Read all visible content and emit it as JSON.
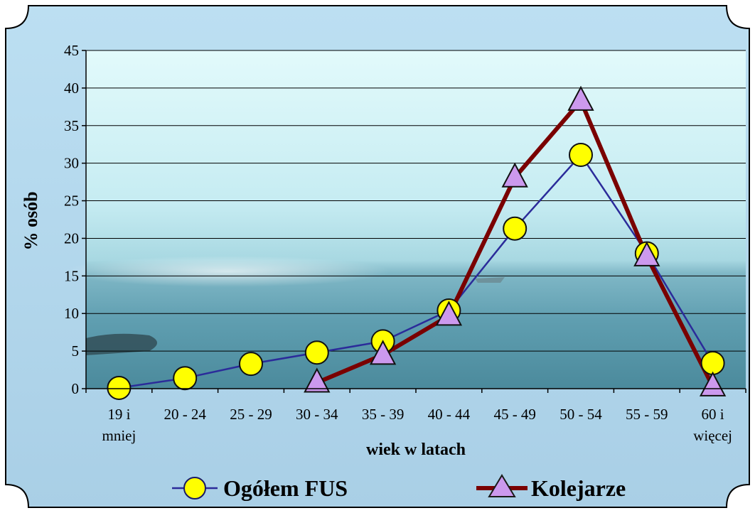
{
  "chart_data": {
    "type": "line",
    "title": "",
    "xlabel": "wiek w latach",
    "ylabel": "% osób",
    "categories": [
      [
        "19 i",
        "mniej"
      ],
      [
        "20 - 24"
      ],
      [
        "25 - 29"
      ],
      [
        "30 - 34"
      ],
      [
        "35 - 39"
      ],
      [
        "40 - 44"
      ],
      [
        "45 - 49"
      ],
      [
        "50 - 54"
      ],
      [
        "55 - 59"
      ],
      [
        "60 i",
        "więcej"
      ]
    ],
    "ylim": [
      0,
      45
    ],
    "yticks": [
      0,
      5,
      10,
      15,
      20,
      25,
      30,
      35,
      40,
      45
    ],
    "grid": true,
    "legend_position": "bottom",
    "series": [
      {
        "name": "Ogółem FUS",
        "values": [
          0.1,
          1.4,
          3.3,
          4.8,
          6.3,
          10.4,
          21.3,
          31.1,
          18.0,
          3.4
        ],
        "line_color": "#2b2b9a",
        "marker": "circle",
        "marker_fill": "#ffff00"
      },
      {
        "name": "Kolejarze",
        "values": [
          null,
          null,
          null,
          0.8,
          4.5,
          9.7,
          28.1,
          38.3,
          17.6,
          0.3
        ],
        "line_color": "#7a0000",
        "marker": "triangle",
        "marker_fill": "#cc99ee"
      }
    ],
    "colors": {
      "frame_bg": "#b8d8ec",
      "sky_top": "#d8f6f8",
      "sea": "#5a9aaa",
      "gridline": "#000000"
    }
  }
}
